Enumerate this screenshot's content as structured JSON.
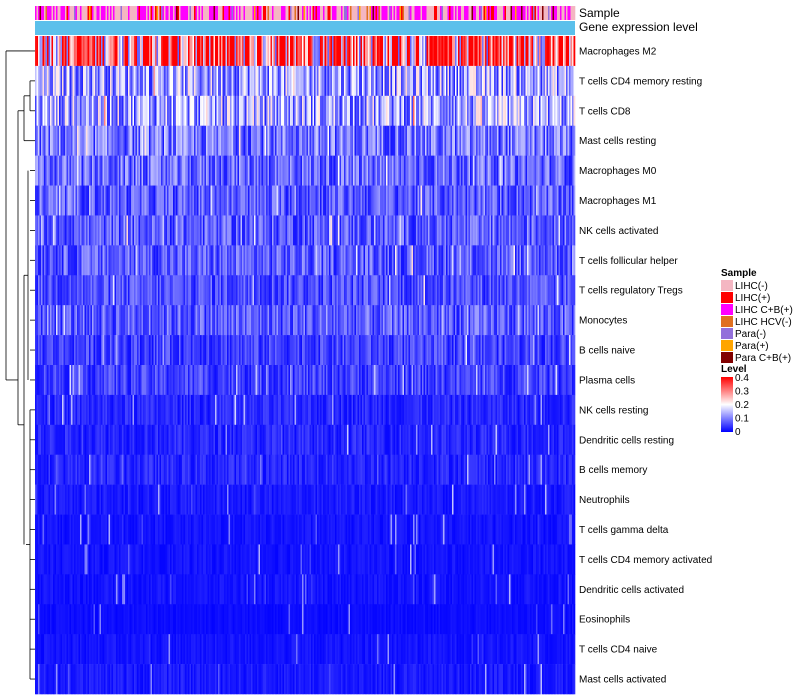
{
  "chart_data": {
    "type": "heatmap",
    "title": "",
    "annotation_labels": [
      "Sample",
      "Gene expression level"
    ],
    "rows": [
      {
        "label": "Macrophages M2",
        "mean": 0.33
      },
      {
        "label": "T cells CD4 memory resting",
        "mean": 0.13
      },
      {
        "label": "T cells CD8",
        "mean": 0.13
      },
      {
        "label": "Mast cells resting",
        "mean": 0.09
      },
      {
        "label": "Macrophages M0",
        "mean": 0.08
      },
      {
        "label": "Macrophages M1",
        "mean": 0.07
      },
      {
        "label": "NK cells activated",
        "mean": 0.07
      },
      {
        "label": "T cells follicular helper",
        "mean": 0.07
      },
      {
        "label": "T cells regulatory  Tregs",
        "mean": 0.06
      },
      {
        "label": "Monocytes",
        "mean": 0.07
      },
      {
        "label": "B cells naive",
        "mean": 0.05
      },
      {
        "label": "Plasma cells",
        "mean": 0.05
      },
      {
        "label": "NK cells resting",
        "mean": 0.03
      },
      {
        "label": "Dendritic cells resting",
        "mean": 0.03
      },
      {
        "label": "B cells memory",
        "mean": 0.03
      },
      {
        "label": "Neutrophils",
        "mean": 0.02
      },
      {
        "label": "T cells gamma delta",
        "mean": 0.015
      },
      {
        "label": "T cells CD4 memory activated",
        "mean": 0.015
      },
      {
        "label": "Dendritic cells activated",
        "mean": 0.015
      },
      {
        "label": "Eosinophils",
        "mean": 0.01
      },
      {
        "label": "T cells CD4 naive",
        "mean": 0.015
      },
      {
        "label": "Mast cells activated",
        "mean": 0.02
      }
    ],
    "n_samples": 360,
    "legend": {
      "sample_title": "Sample",
      "sample_groups": [
        {
          "label": "LIHC(-)",
          "color": "#f4b6c2"
        },
        {
          "label": "LIHC(+)",
          "color": "#ff0000"
        },
        {
          "label": "LIHC C+B(+)",
          "color": "#ff00ff"
        },
        {
          "label": "LIHC HCV(-)",
          "color": "#e07020"
        },
        {
          "label": "Para(-)",
          "color": "#9370db"
        },
        {
          "label": "Para(+)",
          "color": "#ffa500"
        },
        {
          "label": "Para C+B(+)",
          "color": "#800000"
        }
      ],
      "level_title": "Level",
      "level_ticks": [
        "0.4",
        "0.3",
        "0.2",
        "0.1",
        "0"
      ],
      "level_range": [
        0,
        0.4
      ],
      "level_colors": [
        "#0000ff",
        "#ffffff",
        "#ff0000"
      ]
    },
    "gene_expression_color": "#5bc0eb"
  }
}
